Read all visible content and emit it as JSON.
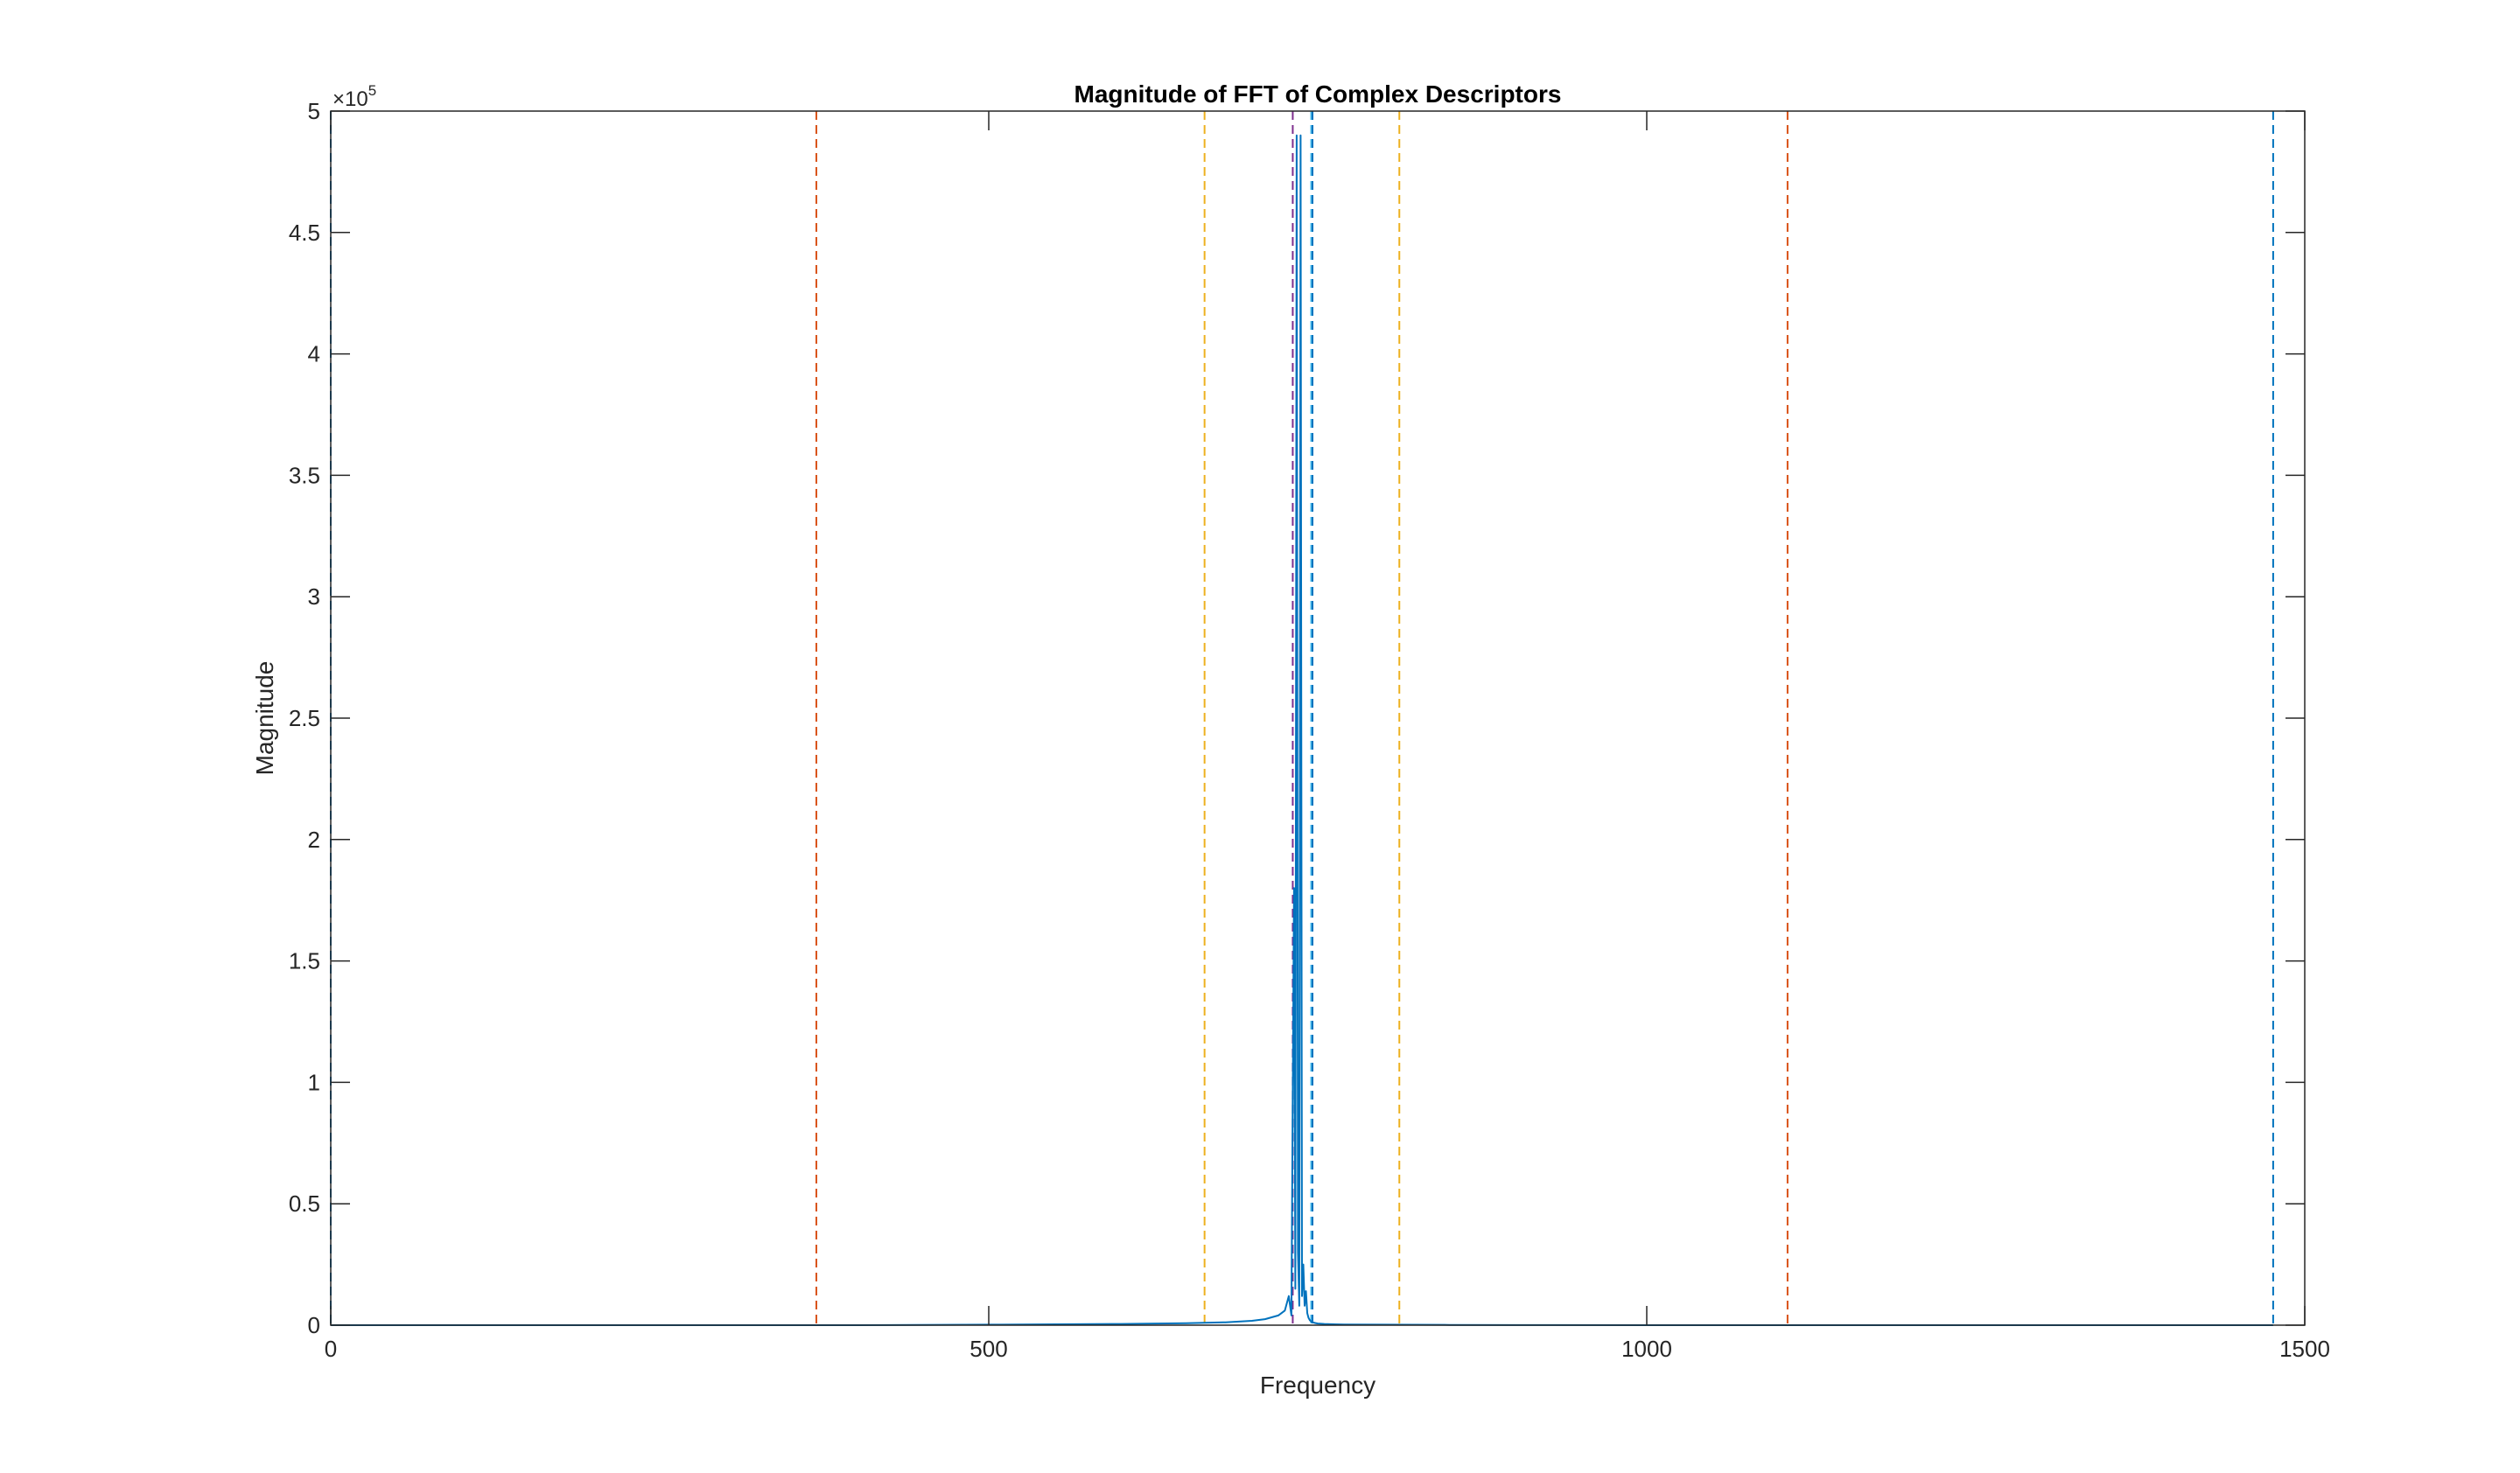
{
  "chart_data": {
    "type": "line",
    "title": "Magnitude of FFT of Complex Descriptors",
    "xlabel": "Frequency",
    "ylabel": "Magnitude",
    "xlim": [
      0,
      1500
    ],
    "ylim": [
      0,
      500000
    ],
    "x_ticks": [
      0,
      500,
      1000,
      1500
    ],
    "x_tick_labels": [
      "0",
      "500",
      "1000",
      "1500"
    ],
    "y_ticks": [
      0,
      50000,
      100000,
      150000,
      200000,
      250000,
      300000,
      350000,
      400000,
      450000,
      500000
    ],
    "y_tick_labels": [
      "0",
      "0.5",
      "1",
      "1.5",
      "2",
      "2.5",
      "3",
      "3.5",
      "4",
      "4.5",
      "5"
    ],
    "y_exponent": {
      "prefix": "×10",
      "power": "5"
    },
    "grid": false,
    "series": [
      {
        "color": "#0072BD",
        "x": [
          0,
          100,
          200,
          300,
          400,
          500,
          600,
          650,
          680,
          700,
          710,
          720,
          725,
          728,
          730,
          732,
          733,
          734,
          735,
          736,
          737,
          738,
          739,
          740,
          741,
          742,
          743,
          744,
          745,
          746,
          748,
          750,
          755,
          760,
          770,
          800,
          850,
          900,
          1000,
          1100,
          1200,
          1300,
          1400,
          1476
        ],
        "y": [
          0,
          0,
          0,
          0,
          0,
          200,
          500,
          800,
          1200,
          1800,
          2500,
          4000,
          6000,
          12000,
          4000,
          180000,
          15000,
          490000,
          30000,
          8000,
          490000,
          12000,
          25000,
          8000,
          14000,
          5000,
          3000,
          2000,
          1500,
          1200,
          900,
          700,
          500,
          400,
          300,
          200,
          100,
          50,
          0,
          0,
          0,
          0,
          0,
          0
        ]
      }
    ],
    "reference_lines": [
      {
        "x": 0,
        "color": "#0072BD",
        "style": "dashed"
      },
      {
        "x": 369,
        "color": "#D95319",
        "style": "dashed"
      },
      {
        "x": 664,
        "color": "#EDB120",
        "style": "dashed"
      },
      {
        "x": 731,
        "color": "#7E2F8E",
        "style": "dashed"
      },
      {
        "x": 745,
        "color": "#4DBEEE",
        "style": "dashed"
      },
      {
        "x": 746,
        "color": "#0072BD",
        "style": "dashed"
      },
      {
        "x": 812,
        "color": "#EDB120",
        "style": "dashed"
      },
      {
        "x": 1107,
        "color": "#D95319",
        "style": "dashed"
      },
      {
        "x": 1476,
        "color": "#0072BD",
        "style": "dashed"
      }
    ]
  }
}
